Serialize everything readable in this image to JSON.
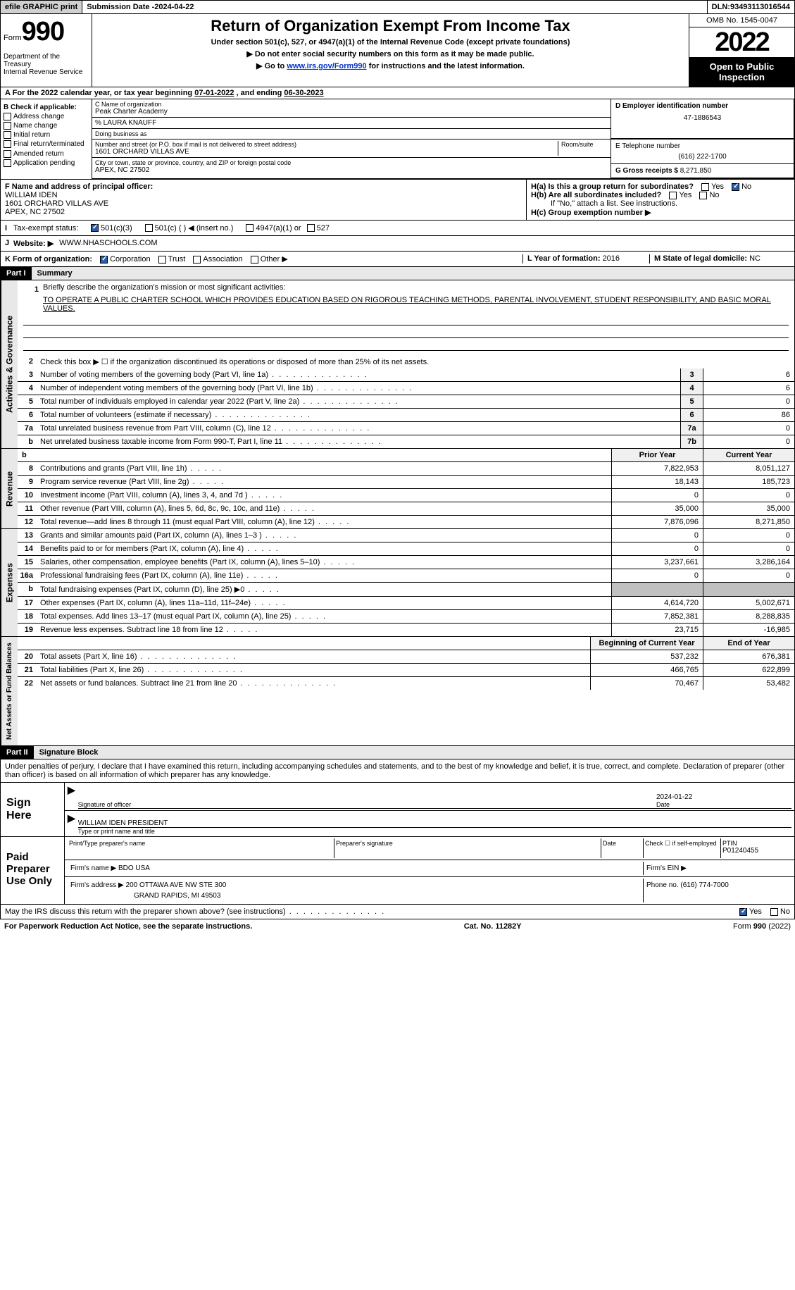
{
  "topbar": {
    "efile": "efile GRAPHIC print",
    "subdate_label": "Submission Date - ",
    "subdate": "2024-04-22",
    "dln_label": "DLN: ",
    "dln": "93493113016544"
  },
  "header": {
    "form_label": "Form",
    "form_num": "990",
    "title": "Return of Organization Exempt From Income Tax",
    "subtitle": "Under section 501(c), 527, or 4947(a)(1) of the Internal Revenue Code (except private foundations)",
    "instr1": "▶ Do not enter social security numbers on this form as it may be made public.",
    "instr2_pre": "▶ Go to ",
    "instr2_link": "www.irs.gov/Form990",
    "instr2_post": " for instructions and the latest information.",
    "dept": "Department of the Treasury\nInternal Revenue Service",
    "omb": "OMB No. 1545-0047",
    "year": "2022",
    "inspection": "Open to Public Inspection"
  },
  "line_a": {
    "text": "For the 2022 calendar year, or tax year beginning ",
    "begin": "07-01-2022",
    "mid": " , and ending ",
    "end": "06-30-2023"
  },
  "check_b": {
    "label": "B Check if applicable:",
    "items": [
      "Address change",
      "Name change",
      "Initial return",
      "Final return/terminated",
      "Amended return",
      "Application pending"
    ]
  },
  "section_c": {
    "name_label": "C Name of organization",
    "name": "Peak Charter Academy",
    "care_of": "% LAURA KNAUFF",
    "dba_label": "Doing business as",
    "dba": "",
    "addr_label": "Number and street (or P.O. box if mail is not delivered to street address)",
    "room_label": "Room/suite",
    "addr": "1601 ORCHARD VILLAS AVE",
    "city_label": "City or town, state or province, country, and ZIP or foreign postal code",
    "city": "APEX, NC  27502"
  },
  "section_deg": {
    "d_label": "D Employer identification number",
    "d_val": "47-1886543",
    "e_label": "E Telephone number",
    "e_val": "(616) 222-1700",
    "g_label": "G Gross receipts $ ",
    "g_val": "8,271,850"
  },
  "section_f": {
    "label": "F Name and address of principal officer:",
    "name": "WILLIAM IDEN",
    "addr1": "1601 ORCHARD VILLAS AVE",
    "addr2": "APEX, NC  27502"
  },
  "section_h": {
    "ha": "H(a)  Is this a group return for subordinates?",
    "hb": "H(b)  Are all subordinates included?",
    "hb_note": "If \"No,\" attach a list. See instructions.",
    "hc": "H(c)  Group exemption number ▶",
    "yes": "Yes",
    "no": "No"
  },
  "row_i": {
    "label": "Tax-exempt status:",
    "opt1": "501(c)(3)",
    "opt2": "501(c) (  ) ◀ (insert no.)",
    "opt3": "4947(a)(1) or",
    "opt4": "527"
  },
  "row_j": {
    "label": "Website: ▶",
    "val": "WWW.NHASCHOOLS.COM"
  },
  "row_k": {
    "label": "K Form of organization:",
    "opts": [
      "Corporation",
      "Trust",
      "Association",
      "Other ▶"
    ],
    "l_label": "L Year of formation: ",
    "l_val": "2016",
    "m_label": "M State of legal domicile: ",
    "m_val": "NC"
  },
  "part1": {
    "hdr": "Part I",
    "title": "Summary",
    "mission_label": "Briefly describe the organization's mission or most significant activities:",
    "mission": "TO OPERATE A PUBLIC CHARTER SCHOOL WHICH PROVIDES EDUCATION BASED ON RIGOROUS TEACHING METHODS, PARENTAL INVOLVEMENT, STUDENT RESPONSIBILITY, AND BASIC MORAL VALUES.",
    "line2": "Check this box ▶ ☐ if the organization discontinued its operations or disposed of more than 25% of its net assets.",
    "lines_gov": [
      {
        "n": "3",
        "t": "Number of voting members of the governing body (Part VI, line 1a)",
        "b": "3",
        "v": "6"
      },
      {
        "n": "4",
        "t": "Number of independent voting members of the governing body (Part VI, line 1b)",
        "b": "4",
        "v": "6"
      },
      {
        "n": "5",
        "t": "Total number of individuals employed in calendar year 2022 (Part V, line 2a)",
        "b": "5",
        "v": "0"
      },
      {
        "n": "6",
        "t": "Total number of volunteers (estimate if necessary)",
        "b": "6",
        "v": "86"
      },
      {
        "n": "7a",
        "t": "Total unrelated business revenue from Part VIII, column (C), line 12",
        "b": "7a",
        "v": "0"
      },
      {
        "n": "b",
        "t": "Net unrelated business taxable income from Form 990-T, Part I, line 11",
        "b": "7b",
        "v": "0"
      }
    ],
    "prior_year": "Prior Year",
    "current_year": "Current Year",
    "lines_rev": [
      {
        "n": "8",
        "t": "Contributions and grants (Part VIII, line 1h)",
        "py": "7,822,953",
        "cy": "8,051,127"
      },
      {
        "n": "9",
        "t": "Program service revenue (Part VIII, line 2g)",
        "py": "18,143",
        "cy": "185,723"
      },
      {
        "n": "10",
        "t": "Investment income (Part VIII, column (A), lines 3, 4, and 7d )",
        "py": "0",
        "cy": "0"
      },
      {
        "n": "11",
        "t": "Other revenue (Part VIII, column (A), lines 5, 6d, 8c, 9c, 10c, and 11e)",
        "py": "35,000",
        "cy": "35,000"
      },
      {
        "n": "12",
        "t": "Total revenue—add lines 8 through 11 (must equal Part VIII, column (A), line 12)",
        "py": "7,876,096",
        "cy": "8,271,850"
      }
    ],
    "lines_exp": [
      {
        "n": "13",
        "t": "Grants and similar amounts paid (Part IX, column (A), lines 1–3 )",
        "py": "0",
        "cy": "0"
      },
      {
        "n": "14",
        "t": "Benefits paid to or for members (Part IX, column (A), line 4)",
        "py": "0",
        "cy": "0"
      },
      {
        "n": "15",
        "t": "Salaries, other compensation, employee benefits (Part IX, column (A), lines 5–10)",
        "py": "3,237,661",
        "cy": "3,286,164"
      },
      {
        "n": "16a",
        "t": "Professional fundraising fees (Part IX, column (A), line 11e)",
        "py": "0",
        "cy": "0"
      },
      {
        "n": "b",
        "t": "Total fundraising expenses (Part IX, column (D), line 25) ▶0",
        "py": "",
        "cy": "",
        "shaded": true
      },
      {
        "n": "17",
        "t": "Other expenses (Part IX, column (A), lines 11a–11d, 11f–24e)",
        "py": "4,614,720",
        "cy": "5,002,671"
      },
      {
        "n": "18",
        "t": "Total expenses. Add lines 13–17 (must equal Part IX, column (A), line 25)",
        "py": "7,852,381",
        "cy": "8,288,835"
      },
      {
        "n": "19",
        "t": "Revenue less expenses. Subtract line 18 from line 12",
        "py": "23,715",
        "cy": "-16,985"
      }
    ],
    "boy": "Beginning of Current Year",
    "eoy": "End of Year",
    "lines_net": [
      {
        "n": "20",
        "t": "Total assets (Part X, line 16)",
        "py": "537,232",
        "cy": "676,381"
      },
      {
        "n": "21",
        "t": "Total liabilities (Part X, line 26)",
        "py": "466,765",
        "cy": "622,899"
      },
      {
        "n": "22",
        "t": "Net assets or fund balances. Subtract line 21 from line 20",
        "py": "70,467",
        "cy": "53,482"
      }
    ],
    "vtab_gov": "Activities & Governance",
    "vtab_rev": "Revenue",
    "vtab_exp": "Expenses",
    "vtab_net": "Net Assets or Fund Balances"
  },
  "part2": {
    "hdr": "Part II",
    "title": "Signature Block",
    "decl": "Under penalties of perjury, I declare that I have examined this return, including accompanying schedules and statements, and to the best of my knowledge and belief, it is true, correct, and complete. Declaration of preparer (other than officer) is based on all information of which preparer has any knowledge.",
    "sign_here": "Sign Here",
    "sig_officer": "Signature of officer",
    "sig_date": "2024-01-22",
    "date_label": "Date",
    "officer_name": "WILLIAM IDEN PRESIDENT",
    "type_name": "Type or print name and title",
    "paid_prep": "Paid Preparer Use Only",
    "prep_name_label": "Print/Type preparer's name",
    "prep_sig_label": "Preparer's signature",
    "check_self": "Check ☐ if self-employed",
    "ptin_label": "PTIN",
    "ptin": "P01240455",
    "firm_name_label": "Firm's name   ▶ ",
    "firm_name": "BDO USA",
    "firm_ein_label": "Firm's EIN ▶",
    "firm_addr_label": "Firm's address ▶ ",
    "firm_addr1": "200 OTTAWA AVE NW STE 300",
    "firm_addr2": "GRAND RAPIDS, MI  49503",
    "firm_phone_label": "Phone no. ",
    "firm_phone": "(616) 774-7000",
    "discuss": "May the IRS discuss this return with the preparer shown above? (see instructions)"
  },
  "footer": {
    "left": "For Paperwork Reduction Act Notice, see the separate instructions.",
    "mid": "Cat. No. 11282Y",
    "right": "Form 990 (2022)"
  }
}
